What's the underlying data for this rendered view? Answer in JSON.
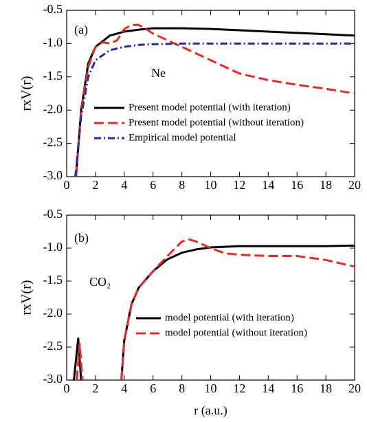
{
  "chart_data": [
    {
      "type": "line",
      "annotations": [
        "(a)",
        "Ne"
      ],
      "ylabel": "rxV(r)",
      "xlim": [
        0,
        20
      ],
      "xticks": [
        0,
        2,
        4,
        6,
        8,
        10,
        12,
        14,
        16,
        18,
        20
      ],
      "ylim": [
        -3,
        -0.5
      ],
      "yticks": [
        {
          "value": -3,
          "label": "-3.0"
        },
        -2.5,
        {
          "value": -2,
          "label": "-2.0"
        },
        -1.5,
        {
          "value": -1,
          "label": "-1.0"
        },
        -0.5
      ],
      "legend": "center left",
      "series": [
        {
          "name": "Present model potential (with iteration)",
          "color": "#000000",
          "style": "solid",
          "x": [
            0.65,
            1,
            1.5,
            2,
            3,
            4,
            5,
            6,
            7,
            8,
            10,
            12,
            14,
            16,
            18,
            20
          ],
          "values": [
            -3,
            -2,
            -1.3,
            -1.05,
            -0.88,
            -0.82,
            -0.79,
            -0.77,
            -0.77,
            -0.77,
            -0.78,
            -0.8,
            -0.82,
            -0.84,
            -0.86,
            -0.88
          ]
        },
        {
          "name": "Present model potential (without iteration)",
          "color": "#e8282a",
          "style": "dashed",
          "x": [
            0.65,
            1,
            1.5,
            2,
            2.5,
            3,
            3.5,
            4,
            4.5,
            5,
            5.5,
            6,
            7,
            8,
            10,
            12,
            14,
            16,
            18,
            20
          ],
          "values": [
            -3,
            -2,
            -1.35,
            -1.05,
            -0.98,
            -1,
            -0.95,
            -0.78,
            -0.72,
            -0.72,
            -0.78,
            -0.85,
            -0.95,
            -1.05,
            -1.25,
            -1.45,
            -1.55,
            -1.62,
            -1.68,
            -1.75
          ]
        },
        {
          "name": "Empirical model potential",
          "color": "#2a2a9a",
          "style": "dashdot",
          "x": [
            0.6,
            1,
            1.5,
            2,
            3,
            4,
            5,
            6,
            8,
            10,
            12,
            14,
            16,
            18,
            20
          ],
          "values": [
            -3,
            -2.1,
            -1.5,
            -1.25,
            -1.1,
            -1.05,
            -1.02,
            -1.01,
            -1,
            -1,
            -1,
            -1,
            -1,
            -1,
            -1
          ]
        }
      ]
    },
    {
      "type": "line",
      "annotations": [
        "(b)",
        "CO₂"
      ],
      "ylabel": "rxV(r)",
      "xlabel": "r (a.u.)",
      "xlim": [
        0,
        20
      ],
      "xticks": [
        0,
        2,
        4,
        6,
        8,
        10,
        12,
        14,
        16,
        18,
        20
      ],
      "ylim": [
        -3,
        -0.5
      ],
      "yticks": [
        {
          "value": -3,
          "label": "-3.0"
        },
        -2.5,
        {
          "value": -2,
          "label": "-2.0"
        },
        -1.5,
        {
          "value": -1,
          "label": "-1.0"
        },
        -0.5
      ],
      "legend": "lower center",
      "series": [
        {
          "name": "model potential (with iteration)",
          "color": "#000000",
          "style": "solid",
          "x": [
            0.5,
            0.8,
            1,
            null,
            3.8,
            4,
            4.5,
            5,
            6,
            7,
            8,
            9,
            10,
            12,
            14,
            16,
            18,
            20
          ],
          "values": [
            -3,
            -2.37,
            -3,
            null,
            -3,
            -2.4,
            -1.85,
            -1.6,
            -1.35,
            -1.17,
            -1.07,
            -1.02,
            -0.99,
            -0.97,
            -0.97,
            -0.97,
            -0.97,
            -0.96
          ]
        },
        {
          "name": "model potential (without iteration)",
          "color": "#e8282a",
          "style": "dashed",
          "x": [
            0.7,
            0.9,
            1.1,
            null,
            3.8,
            4,
            4.5,
            5,
            6,
            7,
            8,
            8.5,
            9,
            10,
            11,
            12,
            14,
            16,
            18,
            20
          ],
          "values": [
            -3,
            -2.45,
            -3,
            null,
            -3,
            -2.4,
            -1.85,
            -1.6,
            -1.35,
            -1.12,
            -0.9,
            -0.87,
            -0.9,
            -1,
            -1.08,
            -1.1,
            -1.12,
            -1.12,
            -1.18,
            -1.28
          ]
        }
      ]
    }
  ]
}
